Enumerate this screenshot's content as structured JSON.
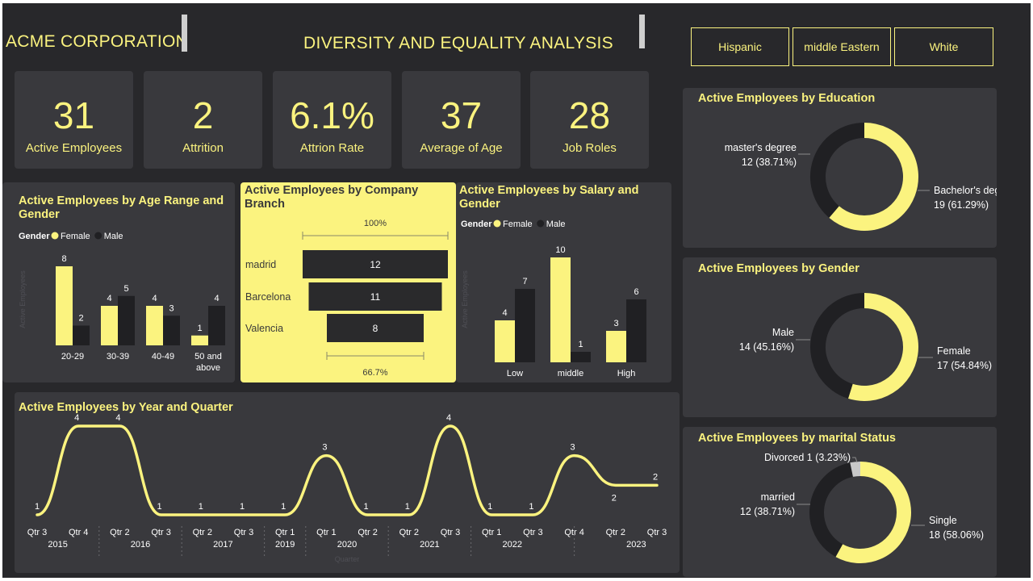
{
  "header": {
    "company": "ACME CORPORATION",
    "title": "DIVERSITY AND EQUALITY ANALYSIS"
  },
  "slicer": {
    "options": [
      "Hispanic",
      "middle Eastern",
      "White"
    ]
  },
  "kpis": [
    {
      "value": "31",
      "label": "Active Employees"
    },
    {
      "value": "2",
      "label": "Attrition"
    },
    {
      "value": "6.1%",
      "label": "Attrion Rate"
    },
    {
      "value": "37",
      "label": "Average of Age"
    },
    {
      "value": "28",
      "label": "Job Roles"
    }
  ],
  "colors": {
    "female": "#fbf37f",
    "male": "#202023",
    "card": "#39393d",
    "background": "#28282b",
    "accent": "#fbf37f",
    "divorced": "#c8c8c8"
  },
  "chart_data": [
    {
      "id": "age",
      "type": "bar",
      "title": "Active Employees by Age Range and Gender",
      "legend_title": "Gender",
      "ylabel": "Active Employees",
      "categories": [
        "20-29",
        "30-39",
        "40-49",
        "50 and above"
      ],
      "series": [
        {
          "name": "Female",
          "values": [
            8,
            4,
            4,
            1
          ]
        },
        {
          "name": "Male",
          "values": [
            2,
            5,
            3,
            4
          ]
        }
      ],
      "ylim": [
        0,
        8
      ],
      "legend": "top-left"
    },
    {
      "id": "branch",
      "type": "bar",
      "title": "Active Employees by Company Branch",
      "categories": [
        "madrid",
        "Barcelona",
        "Valencia"
      ],
      "values": [
        12,
        11,
        8
      ],
      "top_label": "100%",
      "bottom_label": "66.7%"
    },
    {
      "id": "salary",
      "type": "bar",
      "title": "Active Employees by Salary and Gender",
      "legend_title": "Gender",
      "ylabel": "Active Employees",
      "categories": [
        "Low",
        "middle",
        "High"
      ],
      "series": [
        {
          "name": "Female",
          "values": [
            4,
            10,
            3
          ]
        },
        {
          "name": "Male",
          "values": [
            7,
            1,
            6
          ]
        }
      ],
      "ylim": [
        0,
        10
      ],
      "legend": "top-left"
    },
    {
      "id": "year",
      "type": "line",
      "title": "Active Employees by Year and Quarter",
      "xlabel": "Quarter",
      "x": [
        "Qtr 3",
        "Qtr 4",
        "Qtr 2",
        "Qtr 3",
        "Qtr 2",
        "Qtr 3",
        "Qtr 1",
        "Qtr 1",
        "Qtr 2",
        "Qtr 2",
        "Qtr 3",
        "Qtr 1",
        "Qtr 3",
        "Qtr 4",
        "Qtr 2",
        "Qtr 3"
      ],
      "values": [
        1,
        4,
        4,
        1,
        1,
        1,
        1,
        3,
        1,
        1,
        4,
        1,
        1,
        3,
        2,
        2
      ],
      "years": [
        {
          "label": "2015",
          "from": 0,
          "to": 1
        },
        {
          "label": "2016",
          "from": 2,
          "to": 3
        },
        {
          "label": "2017",
          "from": 4,
          "to": 5
        },
        {
          "label": "2019",
          "from": 6,
          "to": 6
        },
        {
          "label": "2020",
          "from": 7,
          "to": 8
        },
        {
          "label": "2021",
          "from": 9,
          "to": 10
        },
        {
          "label": "2022",
          "from": 11,
          "to": 12
        },
        {
          "label": "2023",
          "from": 14,
          "to": 15
        }
      ],
      "ylim": [
        1,
        4
      ]
    },
    {
      "id": "education",
      "type": "pie",
      "title": "Active Employees by Education",
      "slices": [
        {
          "name": "Bachelor's degree",
          "value": 19,
          "label": "19 (61.29%)"
        },
        {
          "name": "master's degree",
          "value": 12,
          "label": "12 (38.71%)"
        }
      ]
    },
    {
      "id": "gender",
      "type": "pie",
      "title": "Active Employees by Gender",
      "slices": [
        {
          "name": "Female",
          "value": 17,
          "label": "17 (54.84%)"
        },
        {
          "name": "Male",
          "value": 14,
          "label": "14 (45.16%)"
        }
      ]
    },
    {
      "id": "marital",
      "type": "pie",
      "title": "Active Employees by marital Status",
      "slices": [
        {
          "name": "Single",
          "value": 18,
          "label": "18 (58.06%)"
        },
        {
          "name": "married",
          "value": 12,
          "label": "12 (38.71%)"
        },
        {
          "name": "Divorced",
          "value": 1,
          "label": "1 (3.23%)"
        }
      ]
    }
  ]
}
